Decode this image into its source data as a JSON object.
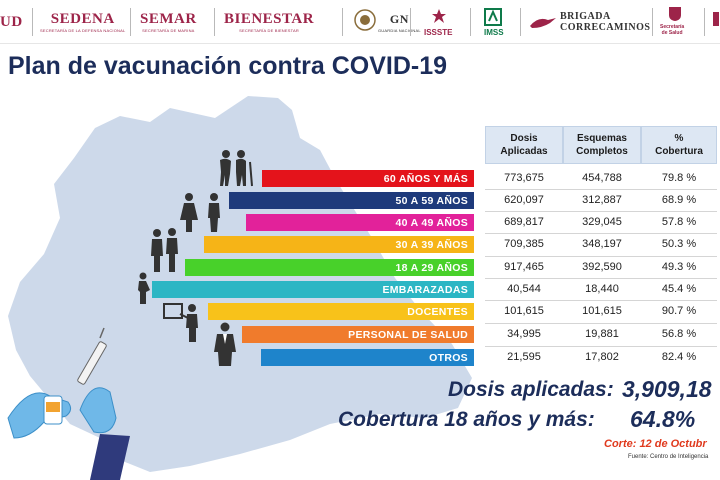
{
  "header": {
    "logos": [
      {
        "name": "salud",
        "text": "UD"
      },
      {
        "name": "sedena",
        "text": "SEDENA",
        "sub": "SECRETARÍA DE LA DEFENSA NACIONAL"
      },
      {
        "name": "semar",
        "text": "SEMAR",
        "sub": "SECRETARÍA DE MARINA"
      },
      {
        "name": "bienestar",
        "text": "BIENESTAR",
        "sub": "SECRETARÍA DE BIENESTAR"
      },
      {
        "name": "gn",
        "text": "GN",
        "sub": "GUARDIA NACIONAL"
      },
      {
        "name": "issste",
        "text": "ISSSTE"
      },
      {
        "name": "imss",
        "text": "IMSS"
      },
      {
        "name": "brigada",
        "text": "BRIGADA",
        "text2": "CORRECAMINOS"
      },
      {
        "name": "salud-estatal",
        "text": "Secretaría",
        "text2": "de Salud"
      }
    ]
  },
  "title": "Plan de vacunación contra COVID-19",
  "table": {
    "headers": [
      {
        "line1": "Dosis",
        "line2": "Aplicadas"
      },
      {
        "line1": "Esquemas",
        "line2": "Completos"
      },
      {
        "line1": "%",
        "line2": "Cobertura"
      }
    ],
    "rows": [
      {
        "label": "60 AÑOS Y MÁS",
        "color": "#e4131b",
        "dosis": "773,675",
        "esquemas": "454,788",
        "cobertura": "79.8 %"
      },
      {
        "label": "50 A 59 AÑOS",
        "color": "#1e3a7b",
        "dosis": "620,097",
        "esquemas": "312,887",
        "cobertura": "68.9 %"
      },
      {
        "label": "40 A 49 AÑOS",
        "color": "#e2229a",
        "dosis": "689,817",
        "esquemas": "329,045",
        "cobertura": "57.8 %"
      },
      {
        "label": "30 A 39 AÑOS",
        "color": "#f6b417",
        "dosis": "709,385",
        "esquemas": "348,197",
        "cobertura": "50.3 %"
      },
      {
        "label": "18 A 29 AÑOS",
        "color": "#48d12a",
        "dosis": "917,465",
        "esquemas": "392,590",
        "cobertura": "49.3 %"
      },
      {
        "label": "EMBARAZADAS",
        "color": "#2cb6c4",
        "dosis": "40,544",
        "esquemas": "18,440",
        "cobertura": "45.4 %"
      },
      {
        "label": "DOCENTES",
        "color": "#f8c21a",
        "dosis": "101,615",
        "esquemas": "101,615",
        "cobertura": "90.7 %"
      },
      {
        "label": "PERSONAL DE SALUD",
        "color": "#f07b2c",
        "dosis": "34,995",
        "esquemas": "19,881",
        "cobertura": "56.8 %"
      },
      {
        "label": "OTROS",
        "color": "#1e84cb",
        "dosis": "21,595",
        "esquemas": "17,802",
        "cobertura": "82.4 %"
      }
    ]
  },
  "summary": {
    "dosis_label": "Dosis aplicadas:",
    "dosis_value": "3,909,18",
    "cobertura_label": "Cobertura 18 años y más:",
    "cobertura_value": "64.8%",
    "corte": "Corte: 12 de Octubr",
    "fuente": "Fuente: Centro de Inteligencia"
  },
  "colors": {
    "brand": "#9d2449",
    "title": "#1c2d5a",
    "map": "#cdd9ea",
    "corte": "#e03a1e",
    "table_header": "#dde7f3"
  }
}
